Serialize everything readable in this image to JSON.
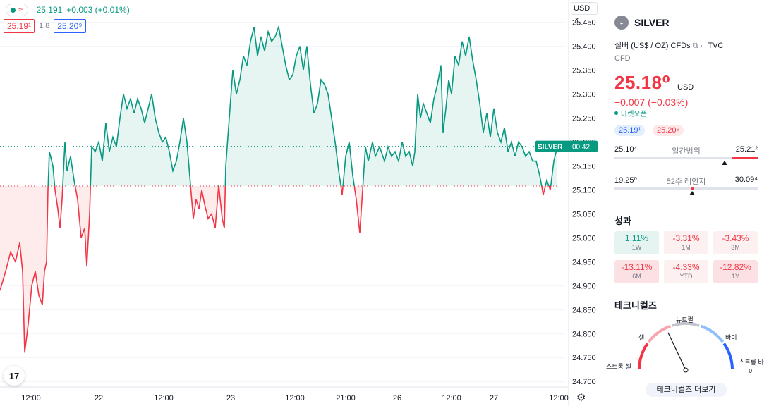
{
  "legend": {
    "price": "25.191",
    "change": "+0.003 (+0.01%)",
    "bid": "25.19¹",
    "spread": "1.8",
    "ask": "25.20⁹"
  },
  "currency": "USD",
  "price_label": {
    "symbol": "SILVER",
    "countdown": "00:42"
  },
  "chart_data": {
    "type": "line",
    "y_ticks": [
      "25.450",
      "25.400",
      "25.350",
      "25.300",
      "25.250",
      "25.200",
      "25.150",
      "25.100",
      "25.050",
      "25.000",
      "24.950",
      "24.900",
      "24.850",
      "24.800",
      "24.750",
      "24.700"
    ],
    "ylim": [
      24.69,
      25.47
    ],
    "x_ticks": [
      "12:00",
      "22",
      "12:00",
      "23",
      "12:00",
      "21:00",
      "26",
      "12:00",
      "27",
      "12:00"
    ],
    "baseline": 25.108,
    "current": 25.191,
    "series_up_color": "#089981",
    "series_down_color": "#f23645",
    "points": [
      [
        0,
        24.89
      ],
      [
        8,
        24.93
      ],
      [
        15,
        24.97
      ],
      [
        22,
        24.95
      ],
      [
        28,
        24.99
      ],
      [
        32,
        24.93
      ],
      [
        35,
        24.76
      ],
      [
        40,
        24.82
      ],
      [
        45,
        24.9
      ],
      [
        50,
        24.93
      ],
      [
        55,
        24.88
      ],
      [
        60,
        24.86
      ],
      [
        63,
        24.93
      ],
      [
        66,
        24.95
      ],
      [
        68,
        25.1
      ],
      [
        70,
        25.18
      ],
      [
        75,
        25.15
      ],
      [
        78,
        25.1
      ],
      [
        82,
        25.06
      ],
      [
        85,
        25.02
      ],
      [
        88,
        25.08
      ],
      [
        92,
        25.2
      ],
      [
        95,
        25.14
      ],
      [
        100,
        25.17
      ],
      [
        105,
        25.12
      ],
      [
        110,
        25.08
      ],
      [
        115,
        25.0
      ],
      [
        120,
        25.02
      ],
      [
        123,
        24.94
      ],
      [
        127,
        25.05
      ],
      [
        130,
        25.19
      ],
      [
        135,
        25.18
      ],
      [
        140,
        25.2
      ],
      [
        145,
        25.16
      ],
      [
        150,
        25.24
      ],
      [
        155,
        25.18
      ],
      [
        160,
        25.21
      ],
      [
        165,
        25.19
      ],
      [
        170,
        25.25
      ],
      [
        175,
        25.3
      ],
      [
        180,
        25.27
      ],
      [
        185,
        25.29
      ],
      [
        190,
        25.26
      ],
      [
        195,
        25.29
      ],
      [
        200,
        25.27
      ],
      [
        205,
        25.24
      ],
      [
        210,
        25.27
      ],
      [
        215,
        25.3
      ],
      [
        220,
        25.25
      ],
      [
        225,
        25.22
      ],
      [
        230,
        25.2
      ],
      [
        235,
        25.21
      ],
      [
        240,
        25.18
      ],
      [
        245,
        25.14
      ],
      [
        250,
        25.16
      ],
      [
        255,
        25.2
      ],
      [
        260,
        25.25
      ],
      [
        265,
        25.2
      ],
      [
        270,
        25.11
      ],
      [
        274,
        25.04
      ],
      [
        278,
        25.08
      ],
      [
        282,
        25.06
      ],
      [
        286,
        25.1
      ],
      [
        290,
        25.07
      ],
      [
        295,
        25.04
      ],
      [
        300,
        25.05
      ],
      [
        305,
        25.02
      ],
      [
        310,
        25.11
      ],
      [
        315,
        25.04
      ],
      [
        318,
        25.02
      ],
      [
        320,
        25.15
      ],
      [
        325,
        25.25
      ],
      [
        330,
        25.35
      ],
      [
        335,
        25.3
      ],
      [
        340,
        25.33
      ],
      [
        345,
        25.38
      ],
      [
        350,
        25.36
      ],
      [
        355,
        25.41
      ],
      [
        360,
        25.44
      ],
      [
        365,
        25.38
      ],
      [
        370,
        25.42
      ],
      [
        375,
        25.39
      ],
      [
        380,
        25.43
      ],
      [
        385,
        25.41
      ],
      [
        390,
        25.42
      ],
      [
        395,
        25.44
      ],
      [
        400,
        25.4
      ],
      [
        405,
        25.36
      ],
      [
        410,
        25.33
      ],
      [
        415,
        25.34
      ],
      [
        420,
        25.38
      ],
      [
        425,
        25.4
      ],
      [
        430,
        25.35
      ],
      [
        435,
        25.4
      ],
      [
        440,
        25.32
      ],
      [
        445,
        25.26
      ],
      [
        450,
        25.28
      ],
      [
        455,
        25.33
      ],
      [
        460,
        25.32
      ],
      [
        465,
        25.3
      ],
      [
        470,
        25.25
      ],
      [
        475,
        25.2
      ],
      [
        480,
        25.14
      ],
      [
        485,
        25.09
      ],
      [
        490,
        25.17
      ],
      [
        495,
        25.2
      ],
      [
        500,
        25.13
      ],
      [
        505,
        25.08
      ],
      [
        510,
        25.01
      ],
      [
        514,
        25.1
      ],
      [
        518,
        25.19
      ],
      [
        522,
        25.16
      ],
      [
        528,
        25.2
      ],
      [
        532,
        25.17
      ],
      [
        538,
        25.19
      ],
      [
        545,
        25.16
      ],
      [
        550,
        25.19
      ],
      [
        555,
        25.17
      ],
      [
        560,
        25.18
      ],
      [
        565,
        25.16
      ],
      [
        570,
        25.2
      ],
      [
        575,
        25.17
      ],
      [
        580,
        25.18
      ],
      [
        585,
        25.15
      ],
      [
        588,
        25.18
      ],
      [
        592,
        25.3
      ],
      [
        596,
        25.25
      ],
      [
        600,
        25.28
      ],
      [
        605,
        25.26
      ],
      [
        610,
        25.24
      ],
      [
        615,
        25.29
      ],
      [
        620,
        25.32
      ],
      [
        625,
        25.36
      ],
      [
        628,
        25.22
      ],
      [
        632,
        25.27
      ],
      [
        636,
        25.33
      ],
      [
        640,
        25.3
      ],
      [
        645,
        25.38
      ],
      [
        650,
        25.36
      ],
      [
        655,
        25.41
      ],
      [
        660,
        25.38
      ],
      [
        665,
        25.42
      ],
      [
        670,
        25.37
      ],
      [
        675,
        25.33
      ],
      [
        680,
        25.28
      ],
      [
        685,
        25.22
      ],
      [
        690,
        25.26
      ],
      [
        695,
        25.21
      ],
      [
        700,
        25.27
      ],
      [
        705,
        25.22
      ],
      [
        710,
        25.2
      ],
      [
        715,
        25.23
      ],
      [
        720,
        25.18
      ],
      [
        725,
        25.2
      ],
      [
        730,
        25.17
      ],
      [
        735,
        25.2
      ],
      [
        740,
        25.19
      ],
      [
        745,
        25.17
      ],
      [
        750,
        25.18
      ],
      [
        755,
        25.16
      ],
      [
        760,
        25.16
      ],
      [
        765,
        25.13
      ],
      [
        770,
        25.09
      ],
      [
        775,
        25.12
      ],
      [
        780,
        25.1
      ],
      [
        785,
        25.16
      ],
      [
        790,
        25.19
      ]
    ]
  },
  "panel": {
    "symbol": "SILVER",
    "description": "실버 (US$ / OZ) CFDs",
    "exchange": "TVC",
    "type": "CFD",
    "price": "25.18⁰",
    "currency": "USD",
    "change": "−0.007 (−0.03%)",
    "market_status": "마켓오픈",
    "bid": "25.19¹",
    "ask": "25.20⁹",
    "day_range": {
      "low": "25.10⁴",
      "label": "일간범위",
      "high": "25.21²",
      "fill_from": 0.82,
      "fill_to": 1.0,
      "marker": 0.77
    },
    "year_range": {
      "low": "19.25⁰",
      "label": "52주 레인지",
      "high": "30.09⁴",
      "marker": 0.54
    },
    "performance_title": "성과",
    "performance": [
      {
        "value": "1.11%",
        "period": "1W",
        "kind": "pos"
      },
      {
        "value": "-3.31%",
        "period": "1M",
        "kind": "neg1"
      },
      {
        "value": "-3.43%",
        "period": "3M",
        "kind": "neg1"
      },
      {
        "value": "-13.11%",
        "period": "6M",
        "kind": "neg2"
      },
      {
        "value": "-4.33%",
        "period": "YTD",
        "kind": "neg1"
      },
      {
        "value": "-12.82%",
        "period": "1Y",
        "kind": "neg2"
      }
    ],
    "technicals_title": "테크니컬즈",
    "gauge": {
      "strong_sell": "스트롱 셀",
      "sell": "셀",
      "neutral": "뉴트럴",
      "buy": "바이",
      "strong_buy": "스트롱 바이",
      "needle": 0.36
    },
    "technicals_button": "테크니컬즈 더보기"
  }
}
